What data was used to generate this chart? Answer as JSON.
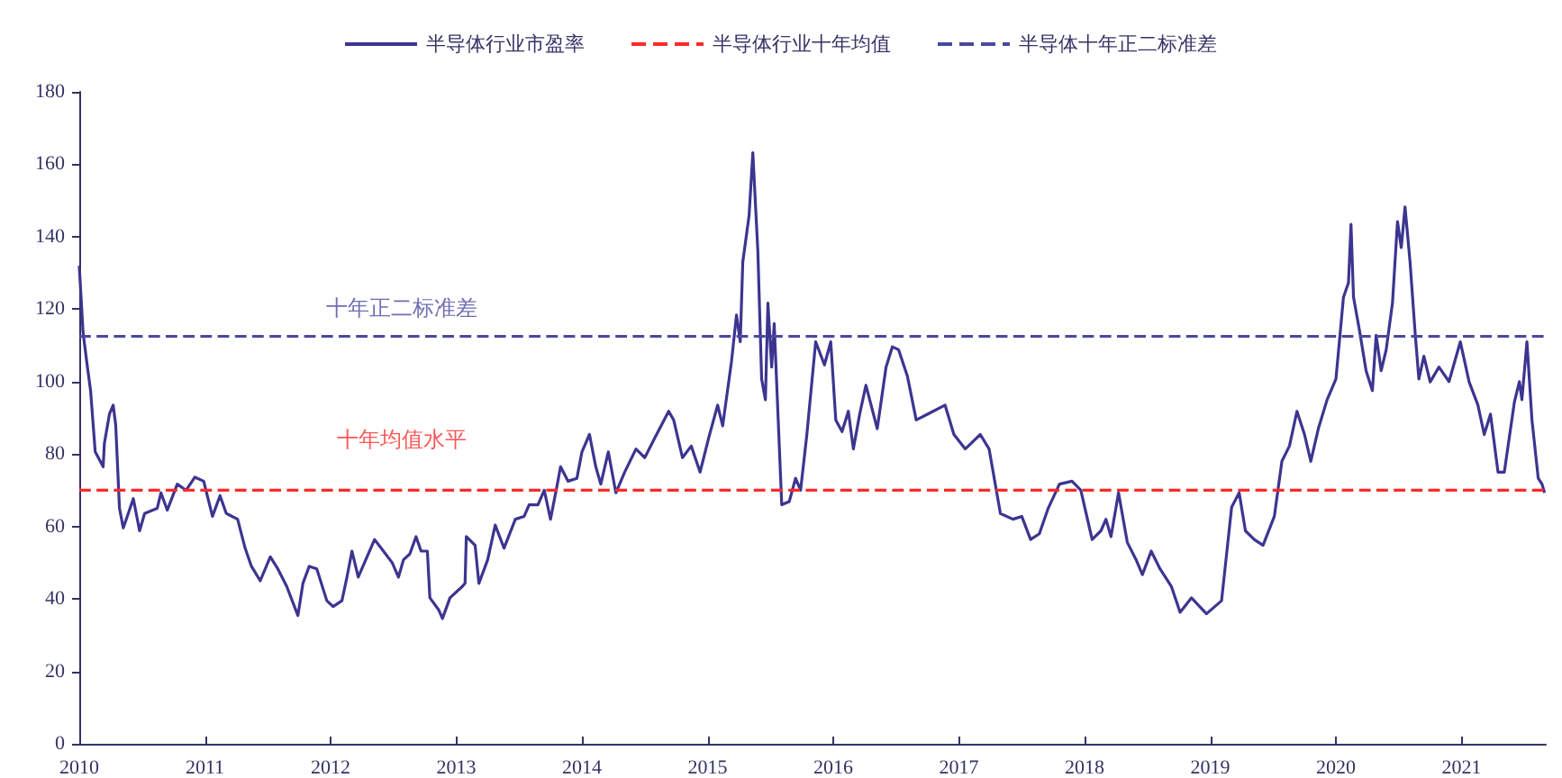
{
  "chart_data": {
    "type": "line",
    "xlim": [
      2010,
      2021.67
    ],
    "xticks": [
      2010,
      2011,
      2012,
      2013,
      2014,
      2015,
      2016,
      2017,
      2018,
      2019,
      2020,
      2021
    ],
    "ylim": [
      0,
      180
    ],
    "yticks": [
      0,
      20,
      40,
      60,
      80,
      100,
      120,
      140,
      160,
      180
    ],
    "grid": false,
    "legend": "top",
    "marker": "none",
    "series": [
      {
        "name": "半导体行业市盈率",
        "color": "#3c3590",
        "line_style": "solid",
        "x": [
          2010.0,
          2010.03,
          2010.065,
          2010.09,
          2010.127,
          2010.19,
          2010.2,
          2010.24,
          2010.27,
          2010.29,
          2010.32,
          2010.35,
          2010.39,
          2010.43,
          2010.48,
          2010.52,
          2010.62,
          2010.65,
          2010.7,
          2010.78,
          2010.85,
          2010.92,
          2010.99,
          2011.06,
          2011.12,
          2011.17,
          2011.26,
          2011.32,
          2011.37,
          2011.44,
          2011.52,
          2011.58,
          2011.65,
          2011.74,
          2011.78,
          2011.83,
          2011.89,
          2011.97,
          2012.02,
          2012.09,
          2012.13,
          2012.17,
          2012.22,
          2012.3,
          2012.35,
          2012.42,
          2012.49,
          2012.54,
          2012.58,
          2012.63,
          2012.68,
          2012.72,
          2012.77,
          2012.79,
          2012.86,
          2012.89,
          2012.95,
          2013.05,
          2013.07,
          2013.08,
          2013.15,
          2013.18,
          2013.25,
          2013.31,
          2013.38,
          2013.47,
          2013.54,
          2013.58,
          2013.65,
          2013.7,
          2013.75,
          2013.8,
          2013.83,
          2013.89,
          2013.96,
          2014.0,
          2014.06,
          2014.11,
          2014.15,
          2014.21,
          2014.27,
          2014.34,
          2014.43,
          2014.5,
          2014.57,
          2014.69,
          2014.73,
          2014.8,
          2014.87,
          2014.94,
          2015.01,
          2015.08,
          2015.12,
          2015.19,
          2015.23,
          2015.26,
          2015.28,
          2015.33,
          2015.36,
          2015.4,
          2015.43,
          2015.46,
          2015.48,
          2015.51,
          2015.53,
          2015.56,
          2015.59,
          2015.65,
          2015.7,
          2015.74,
          2015.79,
          2015.86,
          2015.93,
          2015.98,
          2016.02,
          2016.07,
          2016.12,
          2016.16,
          2016.21,
          2016.26,
          2016.35,
          2016.42,
          2016.47,
          2016.52,
          2016.59,
          2016.66,
          2016.75,
          2016.89,
          2016.96,
          2017.05,
          2017.17,
          2017.24,
          2017.33,
          2017.43,
          2017.5,
          2017.57,
          2017.64,
          2017.71,
          2017.8,
          2017.9,
          2017.97,
          2018.06,
          2018.13,
          2018.17,
          2018.21,
          2018.27,
          2018.34,
          2018.41,
          2018.46,
          2018.53,
          2018.6,
          2018.69,
          2018.76,
          2018.85,
          2018.97,
          2019.09,
          2019.14,
          2019.17,
          2019.23,
          2019.28,
          2019.35,
          2019.42,
          2019.51,
          2019.57,
          2019.63,
          2019.69,
          2019.75,
          2019.8,
          2019.86,
          2019.93,
          2020.0,
          2020.06,
          2020.1,
          2020.12,
          2020.14,
          2020.19,
          2020.24,
          2020.29,
          2020.32,
          2020.36,
          2020.4,
          2020.45,
          2020.49,
          2020.52,
          2020.55,
          2020.59,
          2020.63,
          2020.66,
          2020.7,
          2020.75,
          2020.82,
          2020.9,
          2020.99,
          2021.06,
          2021.13,
          2021.18,
          2021.23,
          2021.29,
          2021.34,
          2021.42,
          2021.46,
          2021.48,
          2021.52,
          2021.56,
          2021.61,
          2021.64,
          2021.66
        ],
        "values": [
          132,
          113.6,
          104,
          97.5,
          80.6,
          76.5,
          83,
          91,
          93.5,
          88,
          65,
          59.6,
          63.6,
          67.7,
          58.8,
          63.6,
          65,
          69.3,
          64.5,
          71.7,
          70,
          73.6,
          72.5,
          62.8,
          68.5,
          63.6,
          62,
          54,
          49,
          45,
          51.6,
          48.3,
          43.5,
          35.4,
          44.3,
          49,
          48.3,
          39.5,
          37.9,
          39.5,
          46,
          53.2,
          46,
          52.4,
          56.4,
          53.2,
          50,
          46,
          50.8,
          52.4,
          57.2,
          53.2,
          53.2,
          40.3,
          37,
          34.6,
          40.3,
          43.5,
          44.3,
          57.2,
          54.8,
          44.3,
          50.8,
          60.4,
          54,
          62,
          62.8,
          66,
          66,
          70,
          62,
          70.9,
          76.5,
          72.5,
          73.3,
          80.6,
          85.4,
          76.5,
          71.7,
          80.6,
          69.3,
          75,
          81.4,
          79,
          83.8,
          91.8,
          89.4,
          79,
          82.2,
          75,
          84.6,
          93.5,
          87.8,
          105.5,
          118.4,
          111,
          133,
          145.8,
          163.2,
          136,
          100.7,
          95,
          121.7,
          104,
          116,
          91,
          66,
          66.9,
          73.3,
          70,
          85.4,
          111,
          104.6,
          111,
          89.4,
          86.2,
          91.8,
          81.4,
          91,
          99,
          87,
          104,
          109.6,
          108.8,
          101.5,
          89.4,
          91,
          93.5,
          85.4,
          81.4,
          85.4,
          81.4,
          63.6,
          62,
          62.8,
          56.4,
          58,
          65,
          71.7,
          72.5,
          70,
          56.4,
          58.8,
          62,
          57.2,
          69.3,
          55.6,
          50.8,
          46.7,
          53.2,
          48.3,
          43.5,
          36.3,
          40.3,
          35.9,
          39.5,
          55.6,
          65.3,
          69.3,
          58.8,
          56.4,
          54.8,
          62.8,
          78,
          82.2,
          91.8,
          85.4,
          78,
          87,
          95,
          100.7,
          123.3,
          127.3,
          143.4,
          123.3,
          113.6,
          103,
          97.5,
          112.8,
          103,
          108.8,
          121.7,
          144.2,
          137,
          148.2,
          133,
          113.6,
          100.7,
          107,
          99.9,
          104,
          100,
          111,
          99.9,
          93.5,
          85.4,
          91,
          75,
          75,
          94.3,
          100,
          95,
          111,
          89.4,
          73.3,
          71.7,
          69.3
        ]
      },
      {
        "name": "半导体行业十年均值",
        "color": "#ff2a2a",
        "line_style": "dashed",
        "x": [
          2010,
          2021.67
        ],
        "values": [
          70,
          70
        ]
      },
      {
        "name": "半导体十年正二标准差",
        "color": "#4a48a0",
        "line_style": "dashed",
        "x": [
          2010,
          2021.67
        ],
        "values": [
          112.5,
          112.5
        ]
      }
    ],
    "annotations": [
      "十年正二标准差",
      "十年均值水平"
    ]
  }
}
